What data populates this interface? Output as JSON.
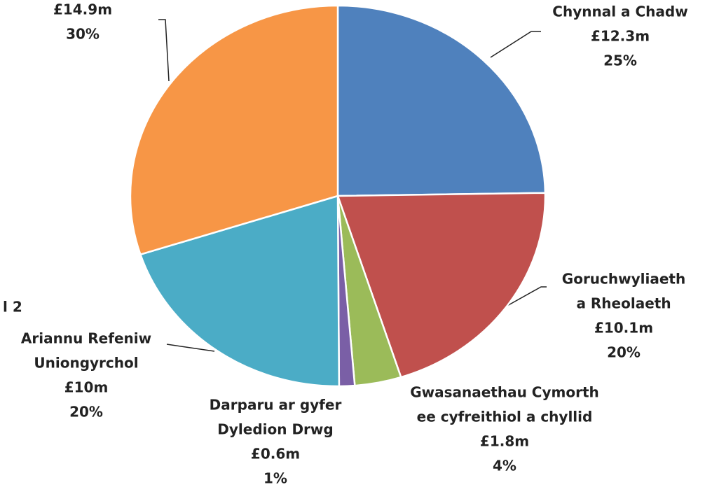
{
  "chart_data": {
    "type": "pie",
    "categories": [
      [
        "Chynnal a Chadw"
      ],
      [
        "Goruchwyliaeth",
        "a Rheolaeth"
      ],
      [
        "Gwasanaethau Cymorth",
        "ee cyfreithiol a chyllid"
      ],
      [
        "Darparu ar gyfer",
        "Dyledion Drwg"
      ],
      [
        "Ariannu Refeniw",
        "Uniongyrchol"
      ],
      null
    ],
    "values": [
      12.3,
      10.1,
      1.8,
      0.6,
      10,
      14.9
    ],
    "value_labels": [
      "£12.3m",
      "£10.1m",
      "£1.8m",
      "£0.6m",
      "£10m",
      "£14.9m"
    ],
    "percent_labels": [
      "25%",
      "20%",
      "4%",
      "1%",
      "20%",
      "30%"
    ],
    "colors": [
      "#4f81bd",
      "#c0504d",
      "#9bbb59",
      "#7a5fa6",
      "#4bacc6",
      "#f79646"
    ],
    "annotations": [
      "l 2"
    ]
  }
}
